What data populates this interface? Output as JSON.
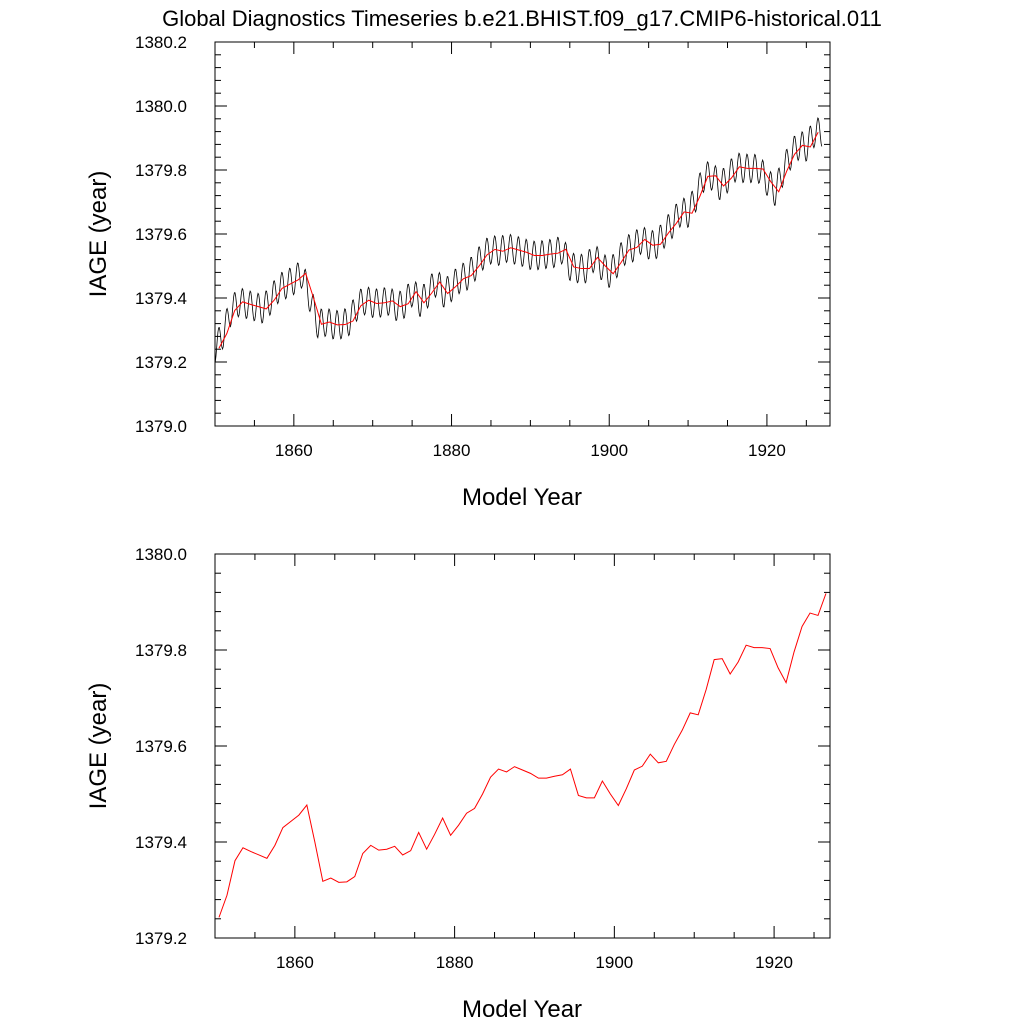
{
  "figure": {
    "title": "Global Diagnostics Timeseries b.e21.BHIST.f09_g17.CMIP6-historical.011"
  },
  "chart_data": [
    {
      "type": "line",
      "xlabel": "Model Year",
      "ylabel": "IAGE (year)",
      "xlim": [
        1850,
        1928
      ],
      "ylim": [
        1379.0,
        1380.2
      ],
      "xticks": [
        "1860",
        "1880",
        "1900",
        "1920"
      ],
      "xtick_values": [
        1860,
        1880,
        1900,
        1920
      ],
      "yticks": [
        "1379.0",
        "1379.2",
        "1379.4",
        "1379.6",
        "1379.8",
        "1380.0",
        "1380.2"
      ],
      "ytick_values": [
        1379.0,
        1379.2,
        1379.4,
        1379.6,
        1379.8,
        1380.0,
        1380.2
      ],
      "grid": false,
      "series": [
        {
          "color": "#000000",
          "note_resolution": "monthly",
          "annual_mean": [
            1379.243,
            1379.289,
            1379.361,
            1379.388,
            1379.38,
            1379.373,
            1379.366,
            1379.393,
            1379.43,
            1379.443,
            1379.456,
            1379.477,
            1379.4,
            1379.318,
            1379.325,
            1379.316,
            1379.317,
            1379.328,
            1379.376,
            1379.393,
            1379.383,
            1379.385,
            1379.391,
            1379.373,
            1379.382,
            1379.42,
            1379.385,
            1379.416,
            1379.45,
            1379.414,
            1379.435,
            1379.46,
            1379.47,
            1379.5,
            1379.535,
            1379.552,
            1379.546,
            1379.557,
            1379.55,
            1379.543,
            1379.533,
            1379.533,
            1379.537,
            1379.54,
            1379.552,
            1379.497,
            1379.492,
            1379.492,
            1379.527,
            1379.5,
            1379.476,
            1379.511,
            1379.55,
            1379.558,
            1379.583,
            1379.565,
            1379.568,
            1379.603,
            1379.633,
            1379.669,
            1379.665,
            1379.718,
            1379.78,
            1379.782,
            1379.75,
            1379.775,
            1379.81,
            1379.805,
            1379.805,
            1379.803,
            1379.763,
            1379.732,
            1379.796,
            1379.849,
            1379.877,
            1379.872,
            1379.918
          ],
          "seasonal_amplitude": 0.045
        },
        {
          "color": "#ff0000",
          "x_start": 1850,
          "values": [
            1379.243,
            1379.289,
            1379.361,
            1379.388,
            1379.38,
            1379.373,
            1379.366,
            1379.393,
            1379.43,
            1379.443,
            1379.456,
            1379.477,
            1379.4,
            1379.318,
            1379.325,
            1379.316,
            1379.317,
            1379.328,
            1379.376,
            1379.393,
            1379.383,
            1379.385,
            1379.391,
            1379.373,
            1379.382,
            1379.42,
            1379.385,
            1379.416,
            1379.45,
            1379.414,
            1379.435,
            1379.46,
            1379.47,
            1379.5,
            1379.535,
            1379.552,
            1379.546,
            1379.557,
            1379.55,
            1379.543,
            1379.533,
            1379.533,
            1379.537,
            1379.54,
            1379.552,
            1379.497,
            1379.492,
            1379.492,
            1379.527,
            1379.5,
            1379.476,
            1379.511,
            1379.55,
            1379.558,
            1379.583,
            1379.565,
            1379.568,
            1379.603,
            1379.633,
            1379.669,
            1379.665,
            1379.718,
            1379.78,
            1379.782,
            1379.75,
            1379.775,
            1379.81,
            1379.805,
            1379.805,
            1379.803,
            1379.763,
            1379.732,
            1379.796,
            1379.849,
            1379.877,
            1379.872,
            1379.918
          ]
        }
      ]
    },
    {
      "type": "line",
      "xlabel": "Model Year",
      "ylabel": "IAGE (year)",
      "xlim": [
        1850,
        1927
      ],
      "ylim": [
        1379.2,
        1380.0
      ],
      "xticks": [
        "1860",
        "1880",
        "1900",
        "1920"
      ],
      "xtick_values": [
        1860,
        1880,
        1900,
        1920
      ],
      "yticks": [
        "1379.2",
        "1379.4",
        "1379.6",
        "1379.8",
        "1380.0"
      ],
      "ytick_values": [
        1379.2,
        1379.4,
        1379.6,
        1379.8,
        1380.0
      ],
      "grid": false,
      "series": [
        {
          "color": "#ff0000",
          "x_start": 1850,
          "values": [
            1379.243,
            1379.289,
            1379.361,
            1379.388,
            1379.38,
            1379.373,
            1379.366,
            1379.393,
            1379.43,
            1379.443,
            1379.456,
            1379.477,
            1379.4,
            1379.318,
            1379.325,
            1379.316,
            1379.317,
            1379.328,
            1379.376,
            1379.393,
            1379.383,
            1379.385,
            1379.391,
            1379.373,
            1379.382,
            1379.42,
            1379.385,
            1379.416,
            1379.45,
            1379.414,
            1379.435,
            1379.46,
            1379.47,
            1379.5,
            1379.535,
            1379.552,
            1379.546,
            1379.557,
            1379.55,
            1379.543,
            1379.533,
            1379.533,
            1379.537,
            1379.54,
            1379.552,
            1379.497,
            1379.492,
            1379.492,
            1379.527,
            1379.5,
            1379.476,
            1379.511,
            1379.55,
            1379.558,
            1379.583,
            1379.565,
            1379.568,
            1379.603,
            1379.633,
            1379.669,
            1379.665,
            1379.718,
            1379.78,
            1379.782,
            1379.75,
            1379.775,
            1379.81,
            1379.805,
            1379.805,
            1379.803,
            1379.763,
            1379.732,
            1379.796,
            1379.849,
            1379.877,
            1379.872,
            1379.918
          ]
        }
      ]
    }
  ]
}
